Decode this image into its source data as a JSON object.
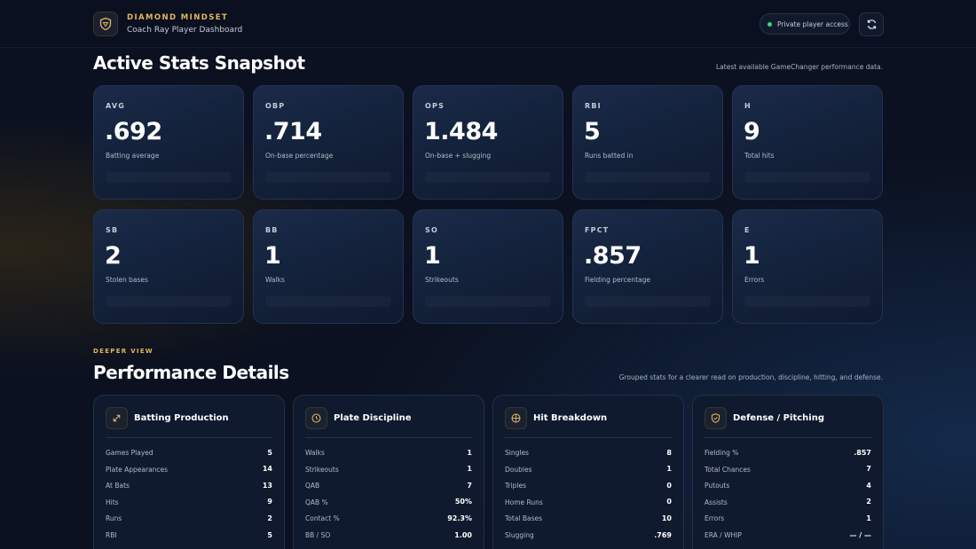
{
  "header": {
    "brand": "DIAMOND MINDSET",
    "subtitle": "Coach Ray Player Dashboard",
    "badge": "Private player access"
  },
  "snapshot": {
    "title": "Active Stats Snapshot",
    "note": "Latest available GameChanger performance data.",
    "cards": [
      {
        "label": "AVG",
        "value": ".692",
        "desc": "Batting average"
      },
      {
        "label": "OBP",
        "value": ".714",
        "desc": "On-base percentage"
      },
      {
        "label": "OPS",
        "value": "1.484",
        "desc": "On-base + slugging"
      },
      {
        "label": "RBI",
        "value": "5",
        "desc": "Runs batted in"
      },
      {
        "label": "H",
        "value": "9",
        "desc": "Total hits"
      },
      {
        "label": "SB",
        "value": "2",
        "desc": "Stolen bases"
      },
      {
        "label": "BB",
        "value": "1",
        "desc": "Walks"
      },
      {
        "label": "SO",
        "value": "1",
        "desc": "Strikeouts"
      },
      {
        "label": "FPCT",
        "value": ".857",
        "desc": "Fielding percentage"
      },
      {
        "label": "E",
        "value": "1",
        "desc": "Errors"
      }
    ]
  },
  "details": {
    "eyebrow": "DEEPER VIEW",
    "title": "Performance Details",
    "note": "Grouped stats for a clearer read on production, discipline, hitting, and defense.",
    "groups": [
      {
        "title": "Batting Production",
        "rows": [
          [
            "Games Played",
            "5"
          ],
          [
            "Plate Appearances",
            "14"
          ],
          [
            "At Bats",
            "13"
          ],
          [
            "Hits",
            "9"
          ],
          [
            "Runs",
            "2"
          ],
          [
            "RBI",
            "5"
          ]
        ]
      },
      {
        "title": "Plate Discipline",
        "rows": [
          [
            "Walks",
            "1"
          ],
          [
            "Strikeouts",
            "1"
          ],
          [
            "QAB",
            "7"
          ],
          [
            "QAB %",
            "50%"
          ],
          [
            "Contact %",
            "92.3%"
          ],
          [
            "BB / SO",
            "1.00"
          ]
        ]
      },
      {
        "title": "Hit Breakdown",
        "rows": [
          [
            "Singles",
            "8"
          ],
          [
            "Doubles",
            "1"
          ],
          [
            "Triples",
            "0"
          ],
          [
            "Home Runs",
            "0"
          ],
          [
            "Total Bases",
            "10"
          ],
          [
            "Slugging",
            ".769"
          ]
        ]
      },
      {
        "title": "Defense / Pitching",
        "rows": [
          [
            "Fielding %",
            ".857"
          ],
          [
            "Total Chances",
            "7"
          ],
          [
            "Putouts",
            "4"
          ],
          [
            "Assists",
            "2"
          ],
          [
            "Errors",
            "1"
          ],
          [
            "ERA / WHIP",
            "— / —"
          ]
        ]
      }
    ]
  }
}
